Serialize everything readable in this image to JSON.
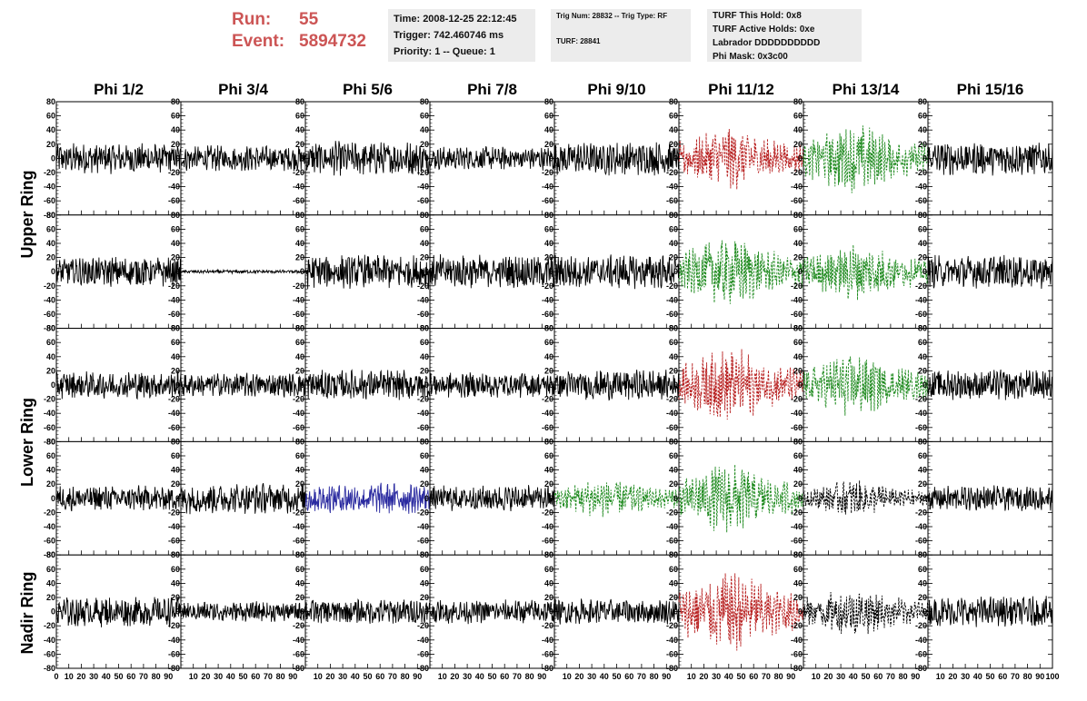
{
  "run": {
    "label": "Run:",
    "value": "55"
  },
  "event": {
    "label": "Event:",
    "value": "5894732"
  },
  "info_time": {
    "time": "Time: 2008-12-25 22:12:45",
    "trigger": "Trigger: 742.460746 ms",
    "priority": "Priority: 1 -- Queue: 1"
  },
  "info_trig": {
    "trig": "Trig Num: 28832 -- Trig Type: RF",
    "turf": "TURF: 28841"
  },
  "info_turf": {
    "this_hold": "TURF This Hold: 0x8",
    "active_holds": "TURF Active Holds: 0xe",
    "labrador": "Labrador DDDDDDDDDD",
    "phi_mask": "Phi Mask: 0x3c00"
  },
  "chart_data": {
    "type": "line",
    "columns": [
      "Phi 1/2",
      "Phi 3/4",
      "Phi 5/6",
      "Phi 7/8",
      "Phi 9/10",
      "Phi 11/12",
      "Phi 13/14",
      "Phi 15/16"
    ],
    "ring_labels": [
      "Upper Ring",
      "Lower Ring",
      "Nadir Ring"
    ],
    "ylim": [
      -80,
      80
    ],
    "xlim": [
      0,
      100
    ],
    "yticks": [
      "80",
      "60",
      "40",
      "20",
      "0",
      "-20",
      "-40",
      "-60",
      "-80"
    ],
    "xticks": [
      "0",
      "10",
      "20",
      "30",
      "40",
      "50",
      "60",
      "70",
      "80",
      "90",
      "100"
    ],
    "colors": {
      "normal": "#000000",
      "red": "#b82020",
      "green": "#1e8a1e",
      "blue": "#2a2aa0",
      "black_dashed": "#000000"
    },
    "trace_styles": [
      [
        "normal",
        "normal",
        "normal",
        "normal",
        "normal",
        "red",
        "green",
        "normal"
      ],
      [
        "normal",
        "normal",
        "normal",
        "normal",
        "normal",
        "green",
        "green",
        "normal"
      ],
      [
        "normal",
        "normal",
        "normal",
        "normal",
        "normal",
        "red",
        "green",
        "normal"
      ],
      [
        "normal",
        "normal",
        "blue",
        "normal",
        "green",
        "green",
        "black_dashed",
        "normal"
      ],
      [
        "normal",
        "normal",
        "normal",
        "normal",
        "normal",
        "red",
        "black_dashed",
        "normal"
      ]
    ],
    "trace_amplitudes": [
      [
        18,
        15,
        20,
        14,
        20,
        32,
        35,
        20
      ],
      [
        18,
        2,
        20,
        20,
        20,
        35,
        30,
        20
      ],
      [
        16,
        14,
        18,
        15,
        18,
        38,
        32,
        18
      ],
      [
        15,
        18,
        18,
        15,
        20,
        35,
        18,
        15
      ],
      [
        18,
        12,
        15,
        14,
        15,
        42,
        25,
        18
      ]
    ]
  }
}
